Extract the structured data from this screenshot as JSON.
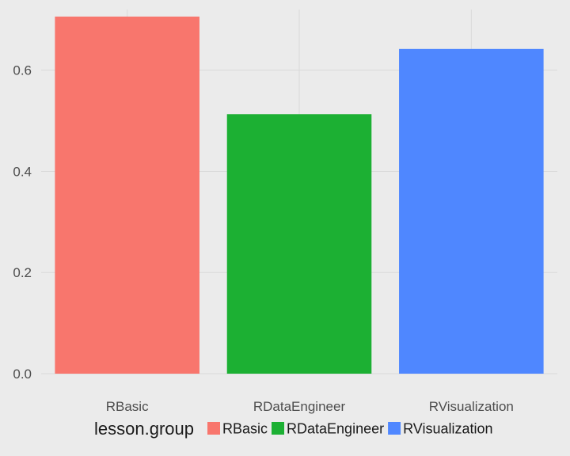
{
  "chart_data": {
    "type": "bar",
    "categories": [
      "RBasic",
      "RDataEngineer",
      "RVisualization"
    ],
    "values": [
      0.706,
      0.513,
      0.642
    ],
    "colors": [
      "#f8766d",
      "#1cb033",
      "#4f87ff"
    ],
    "ylim": [
      0,
      0.72
    ],
    "yticks": [
      0.0,
      0.2,
      0.4,
      0.6
    ],
    "ytick_labels": [
      "0.0",
      "0.2",
      "0.4",
      "0.6"
    ],
    "grid": true,
    "legend": {
      "title": "lesson.group",
      "placement": "bottom",
      "entries": [
        "RBasic",
        "RDataEngineer",
        "RVisualization"
      ]
    },
    "panel_background": "#ebebeb",
    "grid_color": "#d9d9d9"
  }
}
